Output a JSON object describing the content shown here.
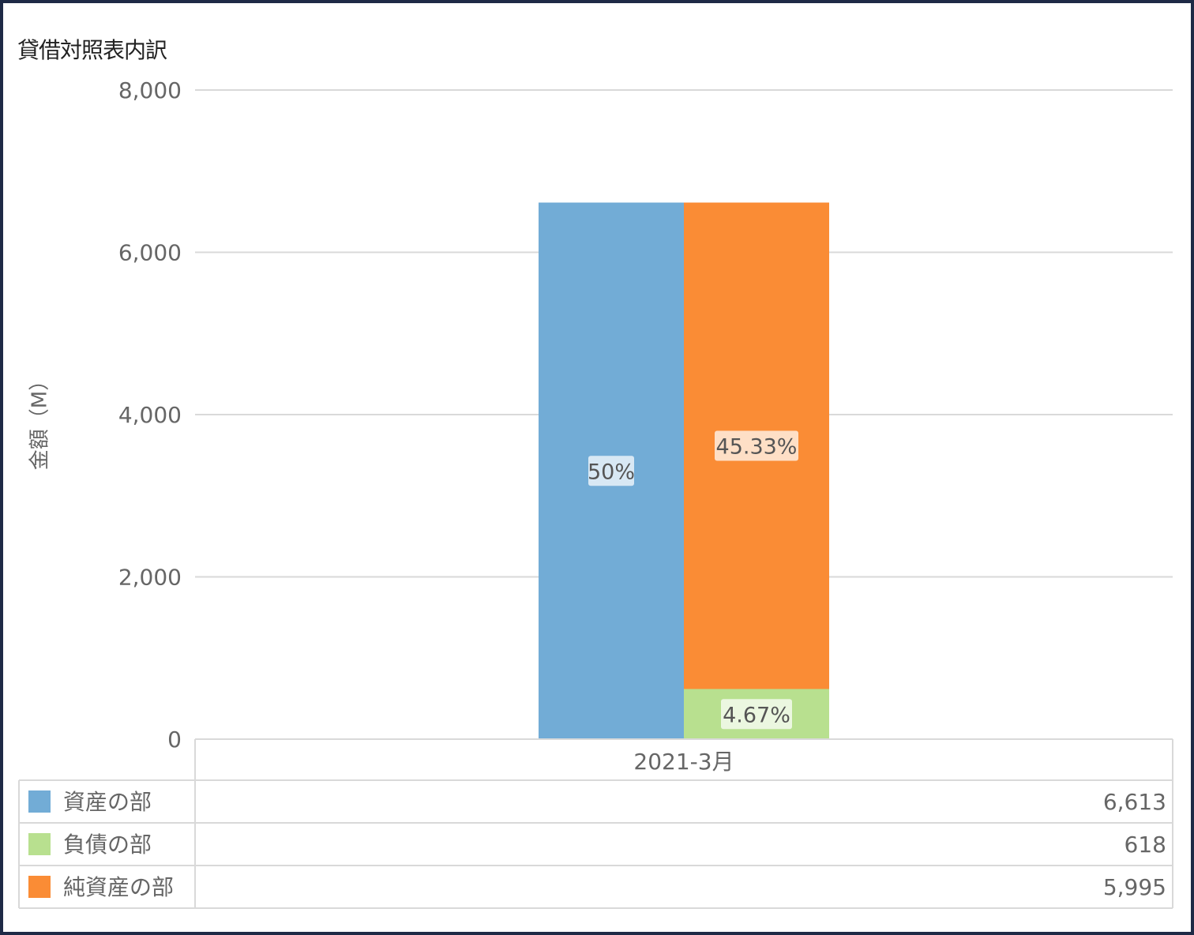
{
  "chart_data": {
    "type": "bar",
    "title": "貸借対照表内訳",
    "ylabel": "金額（M）",
    "ylim": [
      0,
      8000
    ],
    "yticks": [
      0,
      2000,
      4000,
      6000,
      8000
    ],
    "ytick_labels": [
      "0",
      "2,000",
      "4,000",
      "6,000",
      "8,000"
    ],
    "categories": [
      "2021-3月"
    ],
    "grid": true,
    "legend": "bottom-table",
    "series": [
      {
        "name": "資産の部",
        "values": [
          6613
        ],
        "stack": "assets",
        "color": "#72acd6",
        "label": "50%",
        "display": "6,613"
      },
      {
        "name": "負債の部",
        "values": [
          618
        ],
        "stack": "liabilities",
        "color": "#b8e08f",
        "label": "4.67%",
        "display": "618"
      },
      {
        "name": "純資産の部",
        "values": [
          5995
        ],
        "stack": "liabilities",
        "color": "#fa8c35",
        "label": "45.33%",
        "display": "5,995"
      }
    ]
  }
}
